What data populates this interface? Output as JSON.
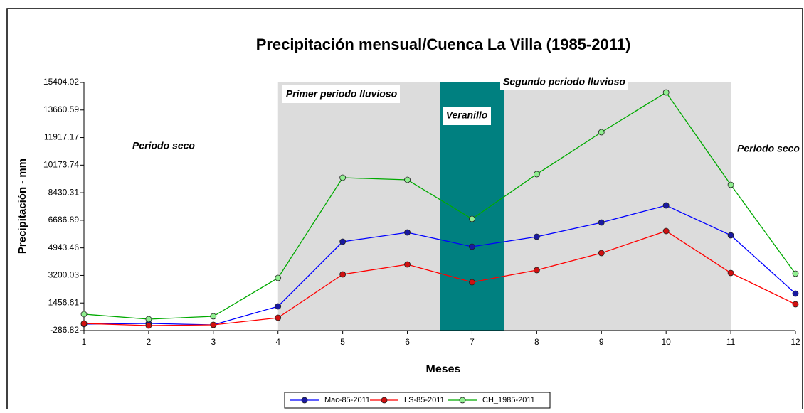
{
  "chart_data": {
    "type": "line",
    "title": "Precipitación mensual/Cuenca La Villa (1985-2011)",
    "x_label": "Meses",
    "y_label": "Precipitación - mm",
    "x": [
      1,
      2,
      3,
      4,
      5,
      6,
      7,
      8,
      9,
      10,
      11,
      12
    ],
    "xlim": [
      1,
      12
    ],
    "xticks": [
      1,
      2,
      3,
      4,
      5,
      6,
      7,
      8,
      9,
      10,
      11,
      12
    ],
    "ylim": [
      -286.82,
      15404.02
    ],
    "yticks": [
      -286.82,
      1456.61,
      3200.03,
      4943.46,
      6686.89,
      8430.31,
      10173.74,
      11917.17,
      13660.59,
      15404.02
    ],
    "bands": [
      {
        "from": 4,
        "to": 11,
        "color": "#dcdcdc"
      },
      {
        "from": 6.5,
        "to": 7.5,
        "color": "#008080"
      }
    ],
    "annotations": [
      "Periodo seco",
      "Primer periodo lluvioso",
      "Veranillo",
      "Segundo periodo lluvioso",
      "Periodo seco"
    ],
    "legend": "bottom",
    "series": [
      {
        "name": "Mac-85-2011",
        "color": "#0000ff",
        "marker": "#1a1aa0",
        "values": [
          118,
          163,
          73,
          1242,
          5333,
          5918,
          5018,
          5648,
          6547,
          7626,
          5738,
          2051
        ]
      },
      {
        "name": "LS-85-2011",
        "color": "#ff0000",
        "marker": "#d01010",
        "values": [
          163,
          28,
          73,
          522,
          3265,
          3894,
          2770,
          3535,
          4614,
          6007,
          3355,
          1377
        ]
      },
      {
        "name": "CH_1985-2011",
        "color": "#00aa00",
        "marker": "#90ee90",
        "values": [
          747,
          432,
          612,
          3040,
          9379,
          9244,
          6772,
          9604,
          12257,
          14774,
          8930,
          3310
        ]
      }
    ]
  }
}
